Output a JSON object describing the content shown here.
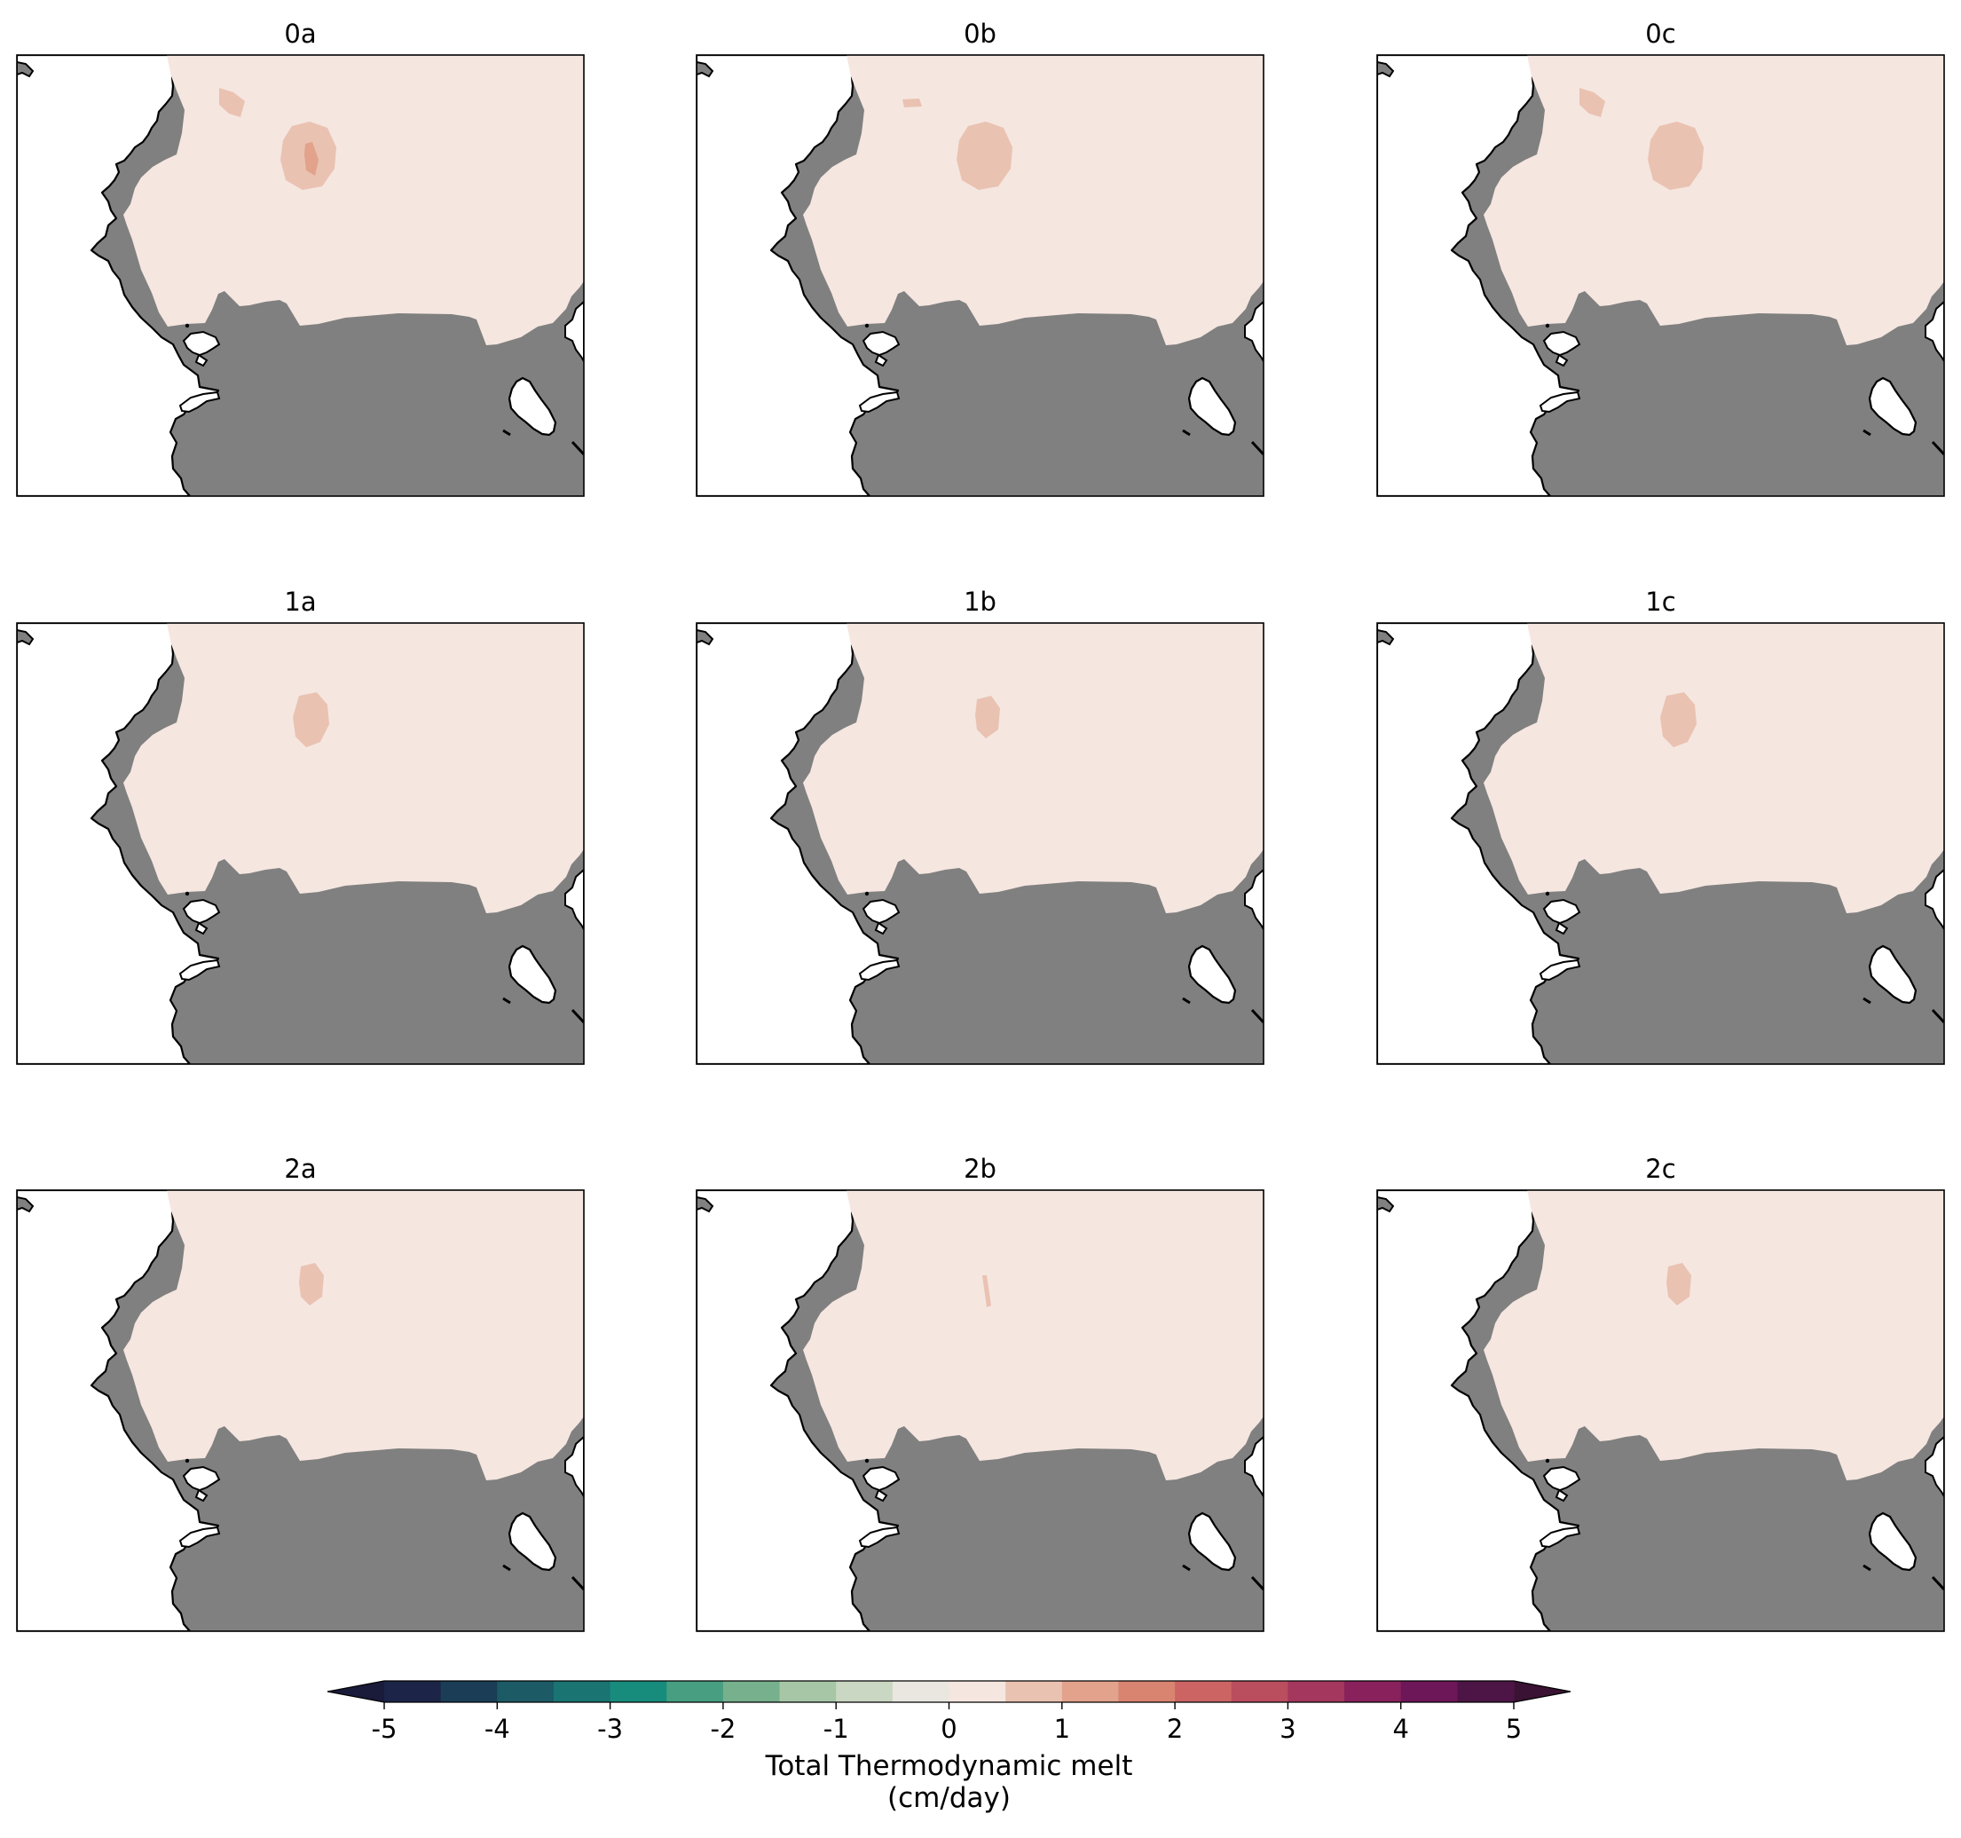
{
  "chart_data": {
    "type": "contour-map-grid",
    "rows": 3,
    "cols": 3,
    "colorbar": {
      "label_line1": "Total Thermodynamic melt",
      "label_line2": "(cm/day)",
      "min": -5,
      "max": 5,
      "step": 0.5,
      "extend": "both",
      "ticks": [
        -5,
        -4,
        -3,
        -2,
        -1,
        0,
        1,
        2,
        3,
        4,
        5
      ],
      "tick_labels": [
        "-5",
        "-4",
        "-3",
        "-2",
        "-1",
        "0",
        "1",
        "2",
        "3",
        "4",
        "5"
      ],
      "colors": [
        "#1c2447",
        "#1b3d56",
        "#1c5a66",
        "#197472",
        "#178c7c",
        "#479e81",
        "#77b08d",
        "#a6c6a6",
        "#cad7c2",
        "#e9e7df",
        "#f5e6e0",
        "#eac2b1",
        "#e2a28b",
        "#d88470",
        "#cc6464",
        "#ba4d5e",
        "#a3375d",
        "#88215c",
        "#6d1758",
        "#4c1545"
      ],
      "under_color": "#1a1b3a",
      "over_color": "#3a1233"
    },
    "background_value": 0.25,
    "land_color": "#808080",
    "panels": [
      {
        "title": "0a",
        "anomalies": [
          {
            "location": "north",
            "value": 0.75,
            "size": "small"
          },
          {
            "location": "north-center",
            "value": 0.75,
            "size": "large",
            "core_value": 1.25
          }
        ]
      },
      {
        "title": "0b",
        "anomalies": [
          {
            "location": "north",
            "value": 0.75,
            "size": "tiny"
          },
          {
            "location": "north-center",
            "value": 0.75,
            "size": "large"
          }
        ]
      },
      {
        "title": "0c",
        "anomalies": [
          {
            "location": "north",
            "value": 0.75,
            "size": "small"
          },
          {
            "location": "north-center",
            "value": 0.75,
            "size": "large"
          }
        ]
      },
      {
        "title": "1a",
        "anomalies": [
          {
            "location": "north-center",
            "value": 0.75,
            "size": "medium"
          }
        ]
      },
      {
        "title": "1b",
        "anomalies": [
          {
            "location": "north-center",
            "value": 0.75,
            "size": "small"
          }
        ]
      },
      {
        "title": "1c",
        "anomalies": [
          {
            "location": "north-center",
            "value": 0.75,
            "size": "medium"
          }
        ]
      },
      {
        "title": "2a",
        "anomalies": [
          {
            "location": "north-center",
            "value": 0.75,
            "size": "small"
          }
        ]
      },
      {
        "title": "2b",
        "anomalies": [
          {
            "location": "north-center",
            "value": 0.75,
            "size": "sliver"
          }
        ]
      },
      {
        "title": "2c",
        "anomalies": [
          {
            "location": "north-center",
            "value": 0.75,
            "size": "small"
          }
        ]
      }
    ]
  }
}
